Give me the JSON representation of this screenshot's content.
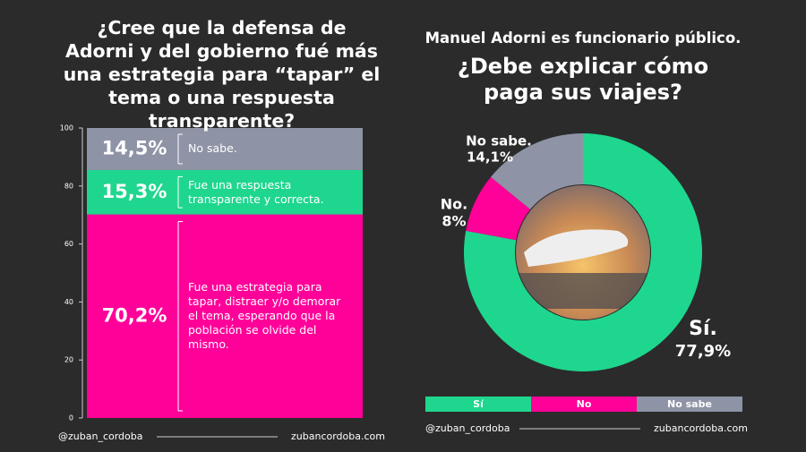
{
  "chart_data": [
    {
      "type": "stacked_bar",
      "title": "¿Cree que la defensa de Adorni y del gobierno fué más una estrategia para “tapar” el tema o una respuesta transparente?",
      "ylim": [
        0,
        100
      ],
      "yticks": [
        0,
        20,
        40,
        60,
        80,
        100
      ],
      "series": [
        {
          "name": "Fue una estrategia para tapar, distraer y/o demorar el tema, esperando que la población se olvide del mismo.",
          "color": "#ff0099",
          "values": [
            70.2
          ],
          "value_labels": [
            "70,2%"
          ]
        },
        {
          "name": "Fue una respuesta transparente y correcta.",
          "color": "#1fd68e",
          "values": [
            15.3
          ],
          "value_labels": [
            "15,3%"
          ]
        },
        {
          "name": "No sabe.",
          "color": "#8e93a6",
          "values": [
            14.5
          ],
          "value_labels": [
            "14,5%"
          ]
        }
      ],
      "footer": [
        "@zuban_cordoba",
        "zubancordoba.com"
      ]
    },
    {
      "type": "donut",
      "subtitle": "Manuel Adorni es funcionario público.",
      "title": "¿Debe explicar cómo paga sus viajes?",
      "categories": [
        "Sí",
        "No",
        "No sabe"
      ],
      "data_labels": [
        "Sí.",
        "No.",
        "No sabe."
      ],
      "values": [
        77.9,
        8,
        14.1
      ],
      "value_labels": [
        "77,9%",
        "8%",
        "14,1%"
      ],
      "colors": [
        "#1fd68e",
        "#ff0099",
        "#8e93a6"
      ],
      "footer": [
        "@zuban_cordoba",
        "zubancordoba.com"
      ]
    }
  ]
}
